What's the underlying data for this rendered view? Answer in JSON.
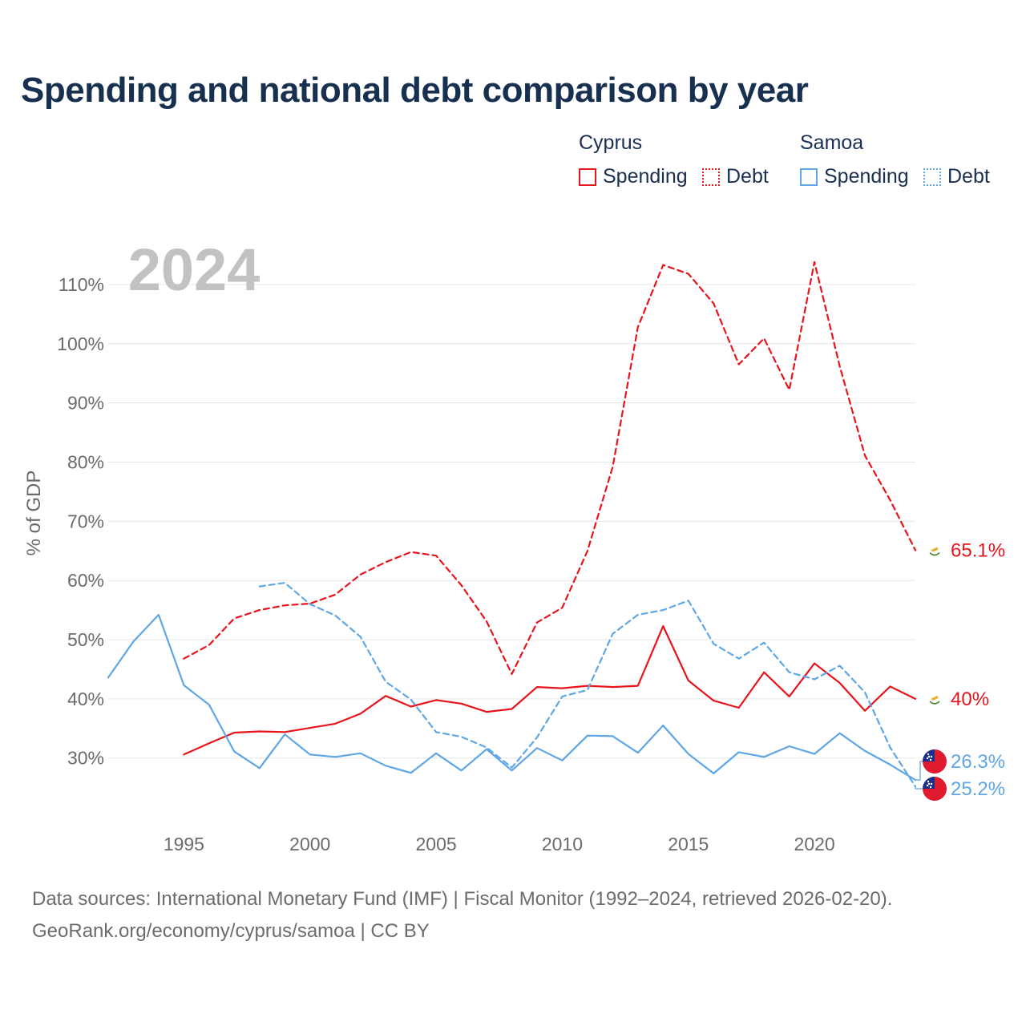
{
  "title": "Spending and national debt comparison by year",
  "legend": {
    "groups": [
      {
        "name": "Cyprus",
        "spending_label": "Spending",
        "debt_label": "Debt",
        "color": "#e8141c"
      },
      {
        "name": "Samoa",
        "spending_label": "Spending",
        "debt_label": "Debt",
        "color": "#5ea6e6"
      }
    ]
  },
  "footer": {
    "line1": "Data sources: International Monetary Fund (IMF) | Fiscal Monitor (1992–2024, retrieved 2026-02-20).",
    "line2": "GeoRank.org/economy/cyprus/samoa | CC BY"
  },
  "chart_data": {
    "type": "line",
    "year_label": "2024",
    "ylabel": "% of GDP",
    "xlim": [
      1992,
      2024
    ],
    "ylim": [
      21.3,
      115
    ],
    "yticks": [
      30,
      40,
      50,
      60,
      70,
      80,
      90,
      100,
      110
    ],
    "ytick_labels": [
      "30%",
      "40%",
      "50%",
      "60%",
      "70%",
      "80%",
      "90%",
      "100%",
      "110%"
    ],
    "xticks": [
      1995,
      2000,
      2005,
      2010,
      2015,
      2020
    ],
    "xtick_labels": [
      "1995",
      "2000",
      "2005",
      "2010",
      "2015",
      "2020"
    ],
    "series": [
      {
        "name": "Cyprus Spending",
        "country": "Cyprus",
        "kind": "spending",
        "color": "#e8141c",
        "dashed": false,
        "x": [
          1995,
          1996,
          1997,
          1998,
          1999,
          2000,
          2001,
          2002,
          2003,
          2004,
          2005,
          2006,
          2007,
          2008,
          2009,
          2010,
          2011,
          2012,
          2013,
          2014,
          2015,
          2016,
          2017,
          2018,
          2019,
          2020,
          2021,
          2022,
          2023,
          2024
        ],
        "y": [
          30.6,
          32.5,
          34.3,
          34.5,
          34.4,
          35.1,
          35.8,
          37.5,
          40.5,
          38.7,
          39.8,
          39.2,
          37.8,
          38.3,
          42.0,
          41.8,
          42.2,
          42.0,
          42.2,
          52.3,
          43.1,
          39.7,
          38.5,
          44.5,
          40.4,
          46.0,
          42.7,
          38.0,
          42.1,
          40.0
        ],
        "end_label": "40%"
      },
      {
        "name": "Cyprus Debt",
        "country": "Cyprus",
        "kind": "debt",
        "color": "#e8141c",
        "dashed": true,
        "x": [
          1995,
          1996,
          1997,
          1998,
          1999,
          2000,
          2001,
          2002,
          2003,
          2004,
          2005,
          2006,
          2007,
          2008,
          2009,
          2010,
          2011,
          2012,
          2013,
          2014,
          2015,
          2016,
          2017,
          2018,
          2019,
          2020,
          2021,
          2022,
          2023,
          2024
        ],
        "y": [
          46.8,
          49.1,
          53.6,
          55.0,
          55.8,
          56.1,
          57.6,
          61.0,
          63.1,
          64.8,
          64.2,
          59.2,
          53.1,
          44.2,
          52.9,
          55.4,
          65.0,
          79.2,
          102.8,
          113.3,
          111.8,
          106.8,
          96.5,
          100.9,
          92.2,
          113.8,
          96.2,
          81.1,
          73.6,
          65.1
        ],
        "end_label": "65.1%"
      },
      {
        "name": "Samoa Spending",
        "country": "Samoa",
        "kind": "spending",
        "color": "#5ea6e6",
        "dashed": false,
        "x": [
          1992,
          1993,
          1994,
          1995,
          1996,
          1997,
          1998,
          1999,
          2000,
          2001,
          2002,
          2003,
          2004,
          2005,
          2006,
          2007,
          2008,
          2009,
          2010,
          2011,
          2012,
          2013,
          2014,
          2015,
          2016,
          2017,
          2018,
          2019,
          2020,
          2021,
          2022,
          2023,
          2024
        ],
        "y": [
          43.6,
          49.7,
          54.2,
          42.3,
          39.0,
          31.1,
          28.3,
          34.0,
          30.6,
          30.2,
          30.8,
          28.7,
          27.5,
          30.8,
          27.9,
          31.5,
          27.9,
          31.7,
          29.6,
          33.8,
          33.7,
          30.9,
          35.5,
          30.7,
          27.4,
          31.0,
          30.2,
          32.0,
          30.7,
          34.2,
          31.2,
          28.9,
          26.3
        ],
        "end_label": "26.3%"
      },
      {
        "name": "Samoa Debt",
        "country": "Samoa",
        "kind": "debt",
        "color": "#5ea6e6",
        "dashed": true,
        "x": [
          1998,
          1999,
          2000,
          2001,
          2002,
          2003,
          2004,
          2005,
          2006,
          2007,
          2008,
          2009,
          2010,
          2011,
          2012,
          2013,
          2014,
          2015,
          2016,
          2017,
          2018,
          2019,
          2020,
          2021,
          2022,
          2023,
          2024
        ],
        "y": [
          59.0,
          59.6,
          56.0,
          54.1,
          50.5,
          42.9,
          39.9,
          34.4,
          33.6,
          31.8,
          28.4,
          33.5,
          40.4,
          41.5,
          51.0,
          54.2,
          55.0,
          56.6,
          49.3,
          46.8,
          49.5,
          44.5,
          43.3,
          45.6,
          41.1,
          31.8,
          25.2
        ],
        "end_label": "25.2%"
      }
    ]
  }
}
